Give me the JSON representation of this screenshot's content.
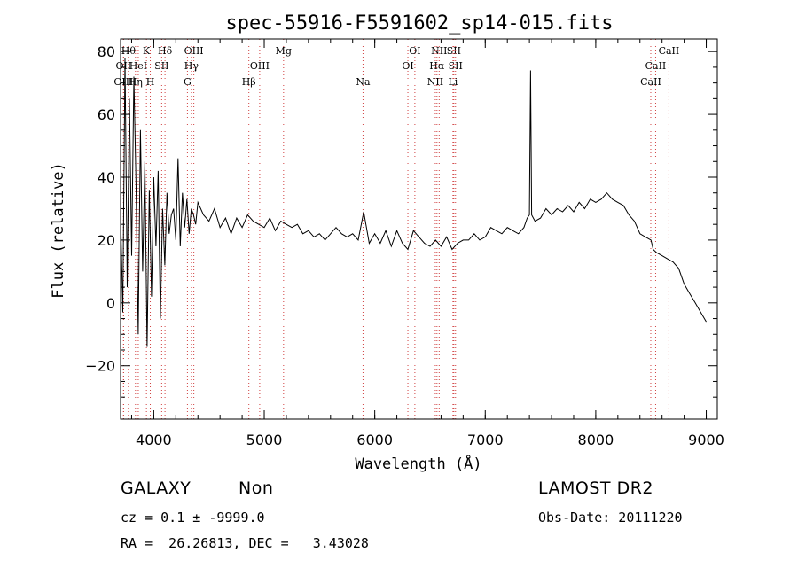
{
  "chart_data": {
    "type": "line",
    "title": "spec-55916-F5591602_sp14-015.fits",
    "xlabel": "Wavelength (Å)",
    "ylabel": "Flux (relative)",
    "xlim": [
      3700,
      9100
    ],
    "ylim": [
      -37,
      84
    ],
    "xticks": [
      4000,
      5000,
      6000,
      7000,
      8000,
      9000
    ],
    "yticks": [
      -20,
      0,
      20,
      40,
      60,
      80
    ],
    "xtick_labels": [
      "4000",
      "5000",
      "6000",
      "7000",
      "8000",
      "9000"
    ],
    "ytick_labels": [
      "−20",
      "0",
      "20",
      "40",
      "60",
      "80"
    ],
    "grid": false,
    "line_color": "#000000",
    "marker_color": "#d04040",
    "series": [
      {
        "x": [
          3700,
          3720,
          3740,
          3760,
          3780,
          3800,
          3820,
          3840,
          3860,
          3880,
          3900,
          3920,
          3940,
          3960,
          3980,
          4000,
          4020,
          4040,
          4060,
          4080,
          4100,
          4120,
          4140,
          4160,
          4180,
          4200,
          4220,
          4240,
          4260,
          4280,
          4300,
          4320,
          4340,
          4360,
          4380,
          4400,
          4450,
          4500,
          4550,
          4600,
          4650,
          4700,
          4750,
          4800,
          4850,
          4900,
          4950,
          5000,
          5050,
          5100,
          5150,
          5200,
          5250,
          5300,
          5350,
          5400,
          5450,
          5500,
          5550,
          5600,
          5650,
          5700,
          5750,
          5800,
          5850,
          5900,
          5950,
          6000,
          6050,
          6100,
          6150,
          6200,
          6250,
          6300,
          6350,
          6400,
          6450,
          6500,
          6550,
          6600,
          6650,
          6700,
          6750,
          6800,
          6850,
          6900,
          6950,
          7000,
          7050,
          7100,
          7150,
          7200,
          7250,
          7300,
          7350,
          7380,
          7400,
          7410,
          7420,
          7450,
          7500,
          7550,
          7600,
          7650,
          7700,
          7750,
          7800,
          7850,
          7900,
          7950,
          8000,
          8050,
          8100,
          8150,
          8200,
          8250,
          8300,
          8350,
          8400,
          8450,
          8500,
          8520,
          8550,
          8600,
          8650,
          8700,
          8750,
          8800,
          8850,
          8900,
          8950,
          9000
        ],
        "y": [
          28,
          -3,
          78,
          5,
          65,
          15,
          72,
          38,
          -10,
          55,
          10,
          45,
          -14,
          36,
          2,
          40,
          18,
          42,
          -5,
          30,
          12,
          35,
          22,
          28,
          30,
          20,
          46,
          18,
          35,
          24,
          33,
          22,
          30,
          28,
          25,
          32,
          28,
          26,
          30,
          24,
          27,
          22,
          27,
          24,
          28,
          26,
          25,
          24,
          27,
          23,
          26,
          25,
          24,
          25,
          22,
          23,
          21,
          22,
          20,
          22,
          24,
          22,
          21,
          22,
          20,
          29,
          19,
          22,
          19,
          23,
          18,
          23,
          19,
          17,
          23,
          21,
          19,
          18,
          20,
          18,
          21,
          17,
          19,
          20,
          20,
          22,
          20,
          21,
          24,
          23,
          22,
          24,
          23,
          22,
          24,
          27,
          28,
          74,
          28,
          26,
          27,
          30,
          28,
          30,
          29,
          31,
          29,
          32,
          30,
          33,
          32,
          33,
          35,
          33,
          32,
          31,
          28,
          26,
          22,
          21,
          20,
          17,
          16,
          15,
          14,
          13,
          11,
          6,
          3,
          0,
          -3,
          -6
        ]
      }
    ],
    "line_markers": [
      {
        "label": "OII",
        "x": 3727,
        "row": 1
      },
      {
        "label": "OIII",
        "x": 3727,
        "row": 2
      },
      {
        "label": "Hθ",
        "x": 3771,
        "row": 0
      },
      {
        "label": "Hη",
        "x": 3835,
        "row": 2
      },
      {
        "label": "HeI",
        "x": 3860,
        "row": 1
      },
      {
        "label": "K",
        "x": 3934,
        "row": 0
      },
      {
        "label": "H",
        "x": 3969,
        "row": 2
      },
      {
        "label": "SII",
        "x": 4072,
        "row": 1
      },
      {
        "label": "Hδ",
        "x": 4102,
        "row": 0
      },
      {
        "label": "OIII",
        "x": 4363,
        "row": 0
      },
      {
        "label": "Hγ",
        "x": 4341,
        "row": 1
      },
      {
        "label": "G",
        "x": 4305,
        "row": 2
      },
      {
        "label": "OIII",
        "x": 4959,
        "row": 1
      },
      {
        "label": "Hβ",
        "x": 4861,
        "row": 2
      },
      {
        "label": "Mg",
        "x": 5175,
        "row": 0
      },
      {
        "label": "Na",
        "x": 5894,
        "row": 2
      },
      {
        "label": "OI",
        "x": 6363,
        "row": 0
      },
      {
        "label": "OI",
        "x": 6300,
        "row": 1
      },
      {
        "label": "NII",
        "x": 6583,
        "row": 0
      },
      {
        "label": "SII",
        "x": 6716,
        "row": 0
      },
      {
        "label": "Hα",
        "x": 6563,
        "row": 1
      },
      {
        "label": "SII",
        "x": 6731,
        "row": 1
      },
      {
        "label": "NII",
        "x": 6548,
        "row": 2
      },
      {
        "label": "Li",
        "x": 6708,
        "row": 2
      },
      {
        "label": "CaII",
        "x": 8662,
        "row": 0
      },
      {
        "label": "CaII",
        "x": 8542,
        "row": 1
      },
      {
        "label": "CaII",
        "x": 8498,
        "row": 2
      }
    ]
  },
  "info": {
    "class": "GALAXY",
    "subclass": "Non",
    "survey": "LAMOST DR2",
    "cz": "cz = 0.1 ± -9999.0",
    "obs_date": "Obs-Date: 20111220",
    "radec": "RA =  26.26813, DEC =   3.43028"
  }
}
